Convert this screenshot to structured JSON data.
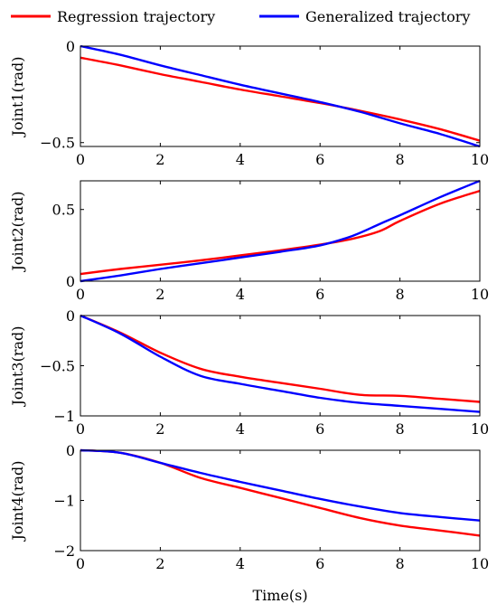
{
  "legend": {
    "placement": "top",
    "entries": [
      {
        "label": "Regression trajectory",
        "color": "#ff0000"
      },
      {
        "label": "Generalized trajectory",
        "color": "#0000ff"
      }
    ]
  },
  "xlabel": "Time(s)",
  "chart_data": [
    {
      "type": "line",
      "ylabel": "Joint1(rad)",
      "xlim": [
        0,
        10
      ],
      "ylim": [
        -0.52,
        0
      ],
      "xticks": [
        0,
        2,
        4,
        6,
        8,
        10
      ],
      "xtick_labels": [
        "0",
        "2",
        "4",
        "6",
        "8",
        "10"
      ],
      "yticks": [
        0,
        -0.5
      ],
      "ytick_labels": [
        "0",
        "−0.5"
      ],
      "grid": false,
      "x": [
        0,
        1,
        2,
        3,
        4,
        5,
        6,
        7,
        8,
        9,
        10
      ],
      "series": [
        {
          "name": "Regression trajectory",
          "color": "#ff0000",
          "values": [
            -0.06,
            -0.1,
            -0.145,
            -0.185,
            -0.225,
            -0.26,
            -0.295,
            -0.335,
            -0.38,
            -0.43,
            -0.49
          ]
        },
        {
          "name": "Generalized trajectory",
          "color": "#0000ff",
          "values": [
            0.0,
            -0.045,
            -0.1,
            -0.15,
            -0.2,
            -0.245,
            -0.29,
            -0.34,
            -0.4,
            -0.455,
            -0.52
          ]
        }
      ]
    },
    {
      "type": "line",
      "ylabel": "Joint2(rad)",
      "xlim": [
        0,
        10
      ],
      "ylim": [
        0,
        0.7
      ],
      "xticks": [
        0,
        2,
        4,
        6,
        8,
        10
      ],
      "xtick_labels": [
        "0",
        "2",
        "4",
        "6",
        "8",
        "10"
      ],
      "yticks": [
        0,
        0.5
      ],
      "ytick_labels": [
        "0",
        "0.5"
      ],
      "grid": false,
      "x": [
        0,
        1,
        2,
        3,
        4,
        5,
        6,
        6.8,
        7.5,
        8,
        9,
        10
      ],
      "series": [
        {
          "name": "Regression trajectory",
          "color": "#ff0000",
          "values": [
            0.05,
            0.085,
            0.115,
            0.145,
            0.18,
            0.215,
            0.255,
            0.295,
            0.35,
            0.42,
            0.54,
            0.63
          ]
        },
        {
          "name": "Generalized trajectory",
          "color": "#0000ff",
          "values": [
            0.0,
            0.04,
            0.085,
            0.125,
            0.165,
            0.205,
            0.25,
            0.315,
            0.4,
            0.46,
            0.585,
            0.7
          ]
        }
      ]
    },
    {
      "type": "line",
      "ylabel": "Joint3(rad)",
      "xlim": [
        0,
        10
      ],
      "ylim": [
        -1,
        0
      ],
      "xticks": [
        0,
        2,
        4,
        6,
        8,
        10
      ],
      "xtick_labels": [
        "0",
        "2",
        "4",
        "6",
        "8",
        "10"
      ],
      "yticks": [
        0,
        -0.5,
        -1
      ],
      "ytick_labels": [
        "0",
        "−0.5",
        "−1"
      ],
      "grid": false,
      "x": [
        0,
        1,
        2,
        3,
        4,
        5,
        6,
        7,
        8,
        9,
        10
      ],
      "series": [
        {
          "name": "Regression trajectory",
          "color": "#ff0000",
          "values": [
            0.0,
            -0.17,
            -0.37,
            -0.53,
            -0.61,
            -0.67,
            -0.73,
            -0.79,
            -0.8,
            -0.83,
            -0.86
          ]
        },
        {
          "name": "Generalized trajectory",
          "color": "#0000ff",
          "values": [
            0.0,
            -0.18,
            -0.41,
            -0.6,
            -0.68,
            -0.75,
            -0.82,
            -0.87,
            -0.9,
            -0.93,
            -0.96
          ]
        }
      ]
    },
    {
      "type": "line",
      "ylabel": "Joint4(rad)",
      "xlim": [
        0,
        10
      ],
      "ylim": [
        -2,
        0
      ],
      "xticks": [
        0,
        2,
        4,
        6,
        8,
        10
      ],
      "xtick_labels": [
        "0",
        "2",
        "4",
        "6",
        "8",
        "10"
      ],
      "yticks": [
        0,
        -1,
        -2
      ],
      "ytick_labels": [
        "0",
        "−1",
        "−2"
      ],
      "grid": false,
      "x": [
        0,
        1,
        2,
        3,
        4,
        5,
        6,
        7,
        8,
        9,
        10
      ],
      "series": [
        {
          "name": "Regression trajectory",
          "color": "#ff0000",
          "values": [
            0.0,
            -0.05,
            -0.25,
            -0.55,
            -0.75,
            -0.95,
            -1.15,
            -1.35,
            -1.5,
            -1.6,
            -1.7
          ]
        },
        {
          "name": "Generalized trajectory",
          "color": "#0000ff",
          "values": [
            0.0,
            -0.05,
            -0.25,
            -0.45,
            -0.63,
            -0.8,
            -0.97,
            -1.12,
            -1.25,
            -1.33,
            -1.4
          ]
        }
      ]
    }
  ]
}
